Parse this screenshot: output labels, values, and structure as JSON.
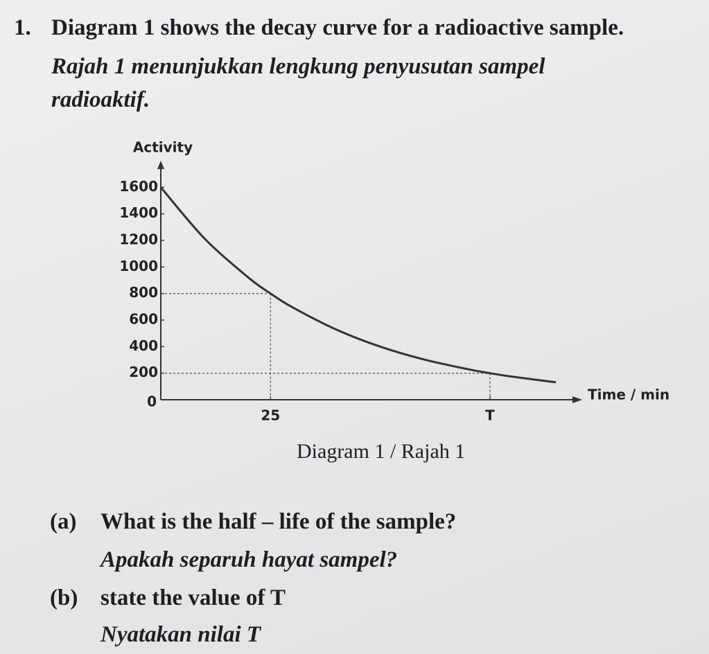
{
  "question": {
    "number": "1.",
    "text_en": "Diagram 1 shows the decay curve for a radioactive sample.",
    "text_ms_1": "Rajah 1 menunjukkan lengkung penyusutan sampel",
    "text_ms_2": "radioaktif."
  },
  "chart_data": {
    "type": "line",
    "y_label": "Activity",
    "x_label": "Time / min",
    "caption": "Diagram 1 / Rajah 1",
    "x": [
      0,
      10,
      20,
      25,
      30,
      40,
      50,
      60,
      70,
      75,
      80,
      90
    ],
    "series": [
      {
        "color": "#333333",
        "values": [
          1600,
          1213,
          919,
          800,
          696,
          528,
          400,
          303,
          230,
          200,
          174,
          132
        ]
      }
    ],
    "xlim": [
      0,
      96
    ],
    "ylim": [
      0,
      1800
    ],
    "xticks": [
      25,
      {
        "value": 75,
        "label": "T"
      }
    ],
    "yticks": [
      0,
      200,
      400,
      600,
      800,
      1000,
      1200,
      1400,
      1600
    ],
    "dashed_guides": [
      {
        "x": 25,
        "y": 800
      },
      {
        "x": 75,
        "y": 200
      }
    ]
  },
  "parts": [
    {
      "label": "(a)",
      "text_en": "What is the half – life of the sample?",
      "text_ms": "Apakah separuh hayat sampel?"
    },
    {
      "label": "(b)",
      "text_en": "state the value of T",
      "text_ms": "Nyatakan nilai T"
    }
  ]
}
